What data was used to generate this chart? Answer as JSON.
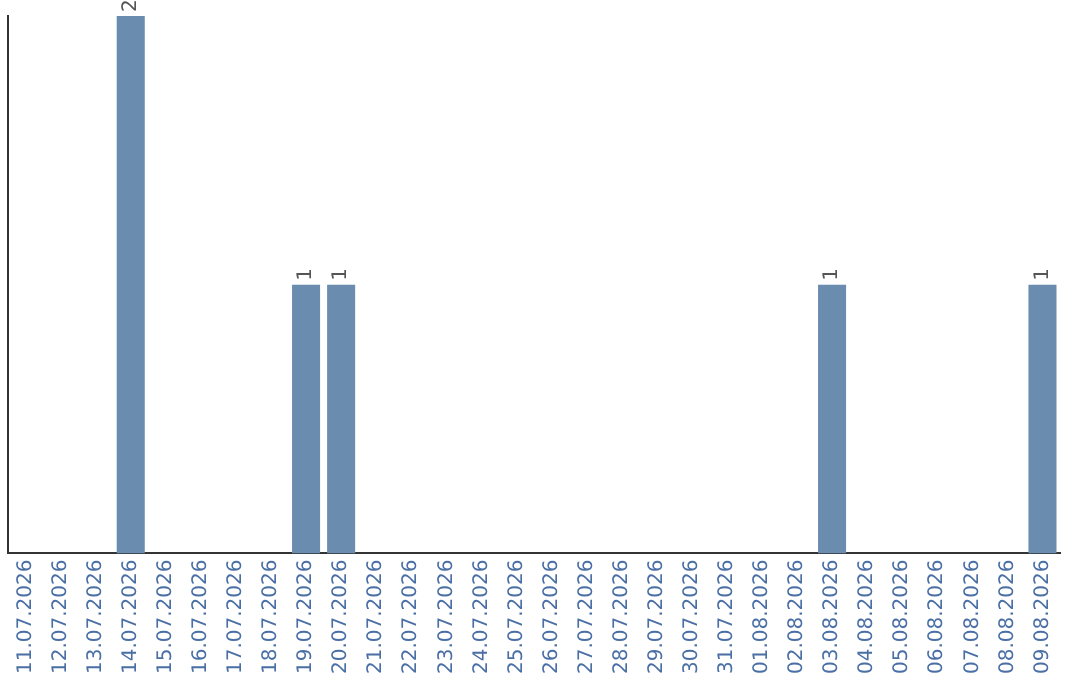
{
  "chart_data": {
    "type": "bar",
    "categories": [
      "11.07.2026",
      "12.07.2026",
      "13.07.2026",
      "14.07.2026",
      "15.07.2026",
      "16.07.2026",
      "17.07.2026",
      "18.07.2026",
      "19.07.2026",
      "20.07.2026",
      "21.07.2026",
      "22.07.2026",
      "23.07.2026",
      "24.07.2026",
      "25.07.2026",
      "26.07.2026",
      "27.07.2026",
      "28.07.2026",
      "29.07.2026",
      "30.07.2026",
      "31.07.2026",
      "01.08.2026",
      "02.08.2026",
      "03.08.2026",
      "04.08.2026",
      "05.08.2026",
      "06.08.2026",
      "07.08.2026",
      "08.08.2026",
      "09.08.2026"
    ],
    "values": [
      0,
      0,
      0,
      2,
      0,
      0,
      0,
      0,
      1,
      1,
      0,
      0,
      0,
      0,
      0,
      0,
      0,
      0,
      0,
      0,
      0,
      0,
      0,
      1,
      0,
      0,
      0,
      0,
      0,
      1
    ],
    "value_labels": [
      null,
      null,
      null,
      "2",
      null,
      null,
      null,
      null,
      "1",
      "1",
      null,
      null,
      null,
      null,
      null,
      null,
      null,
      null,
      null,
      null,
      null,
      null,
      null,
      "1",
      null,
      null,
      null,
      null,
      null,
      "1"
    ],
    "color": "#6a8caf",
    "grid": false,
    "legend": false,
    "tick_labels": "x"
  }
}
